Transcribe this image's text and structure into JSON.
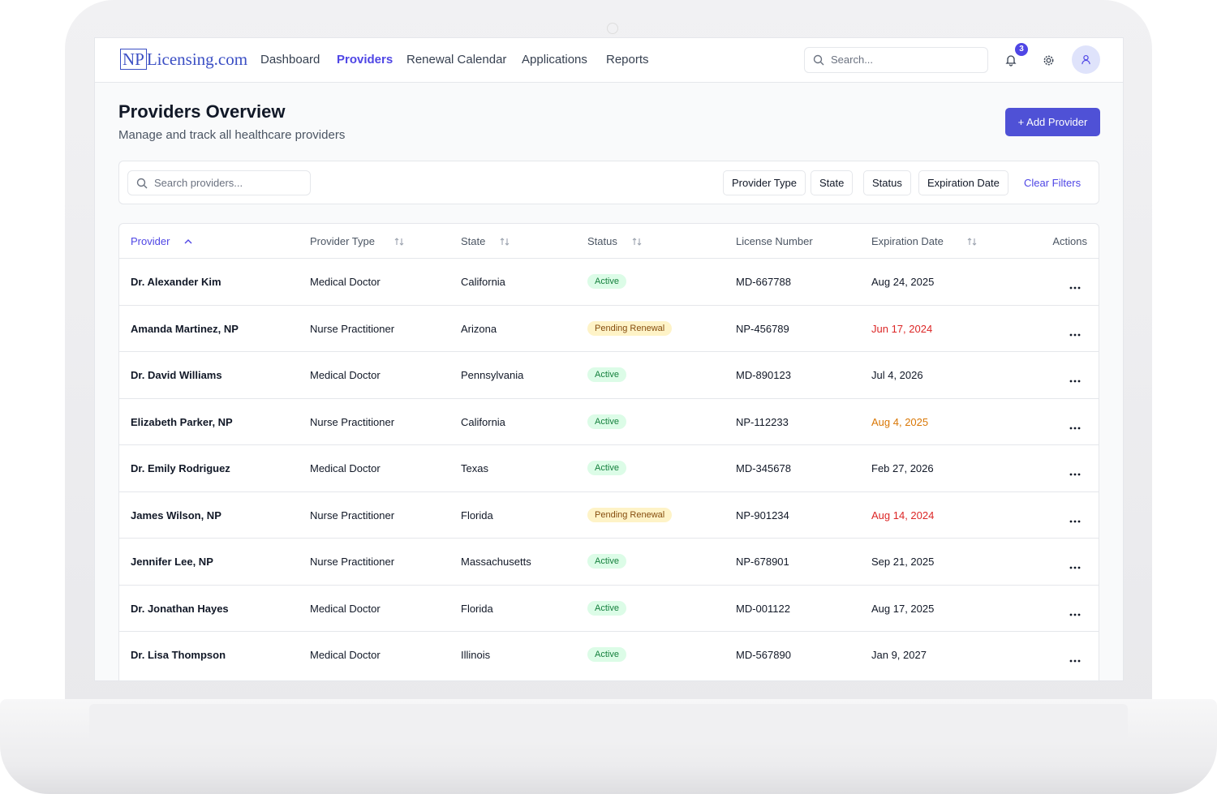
{
  "nav": {
    "logo": {
      "box": "NP",
      "rest": "Licensing.com"
    },
    "links": [
      "Dashboard",
      "Providers",
      "Renewal Calendar",
      "Applications",
      "Reports"
    ],
    "active_link": 1,
    "search_placeholder": "Search...",
    "notification_count": "3"
  },
  "header": {
    "title": "Providers Overview",
    "subtitle": "Manage and track all healthcare providers",
    "button": "+ Add Provider"
  },
  "filters": {
    "search_placeholder": "Search providers...",
    "buttons": [
      "Provider Type",
      "State",
      "Status",
      "Expiration Date"
    ],
    "clear": "Clear Filters"
  },
  "table": {
    "columns": [
      "Provider",
      "Provider Type",
      "State",
      "Status",
      "License Number",
      "Expiration Date",
      "Actions"
    ],
    "rows": [
      {
        "provider": "Dr. Alexander Kim",
        "type": "Medical Doctor",
        "state": "California",
        "status": "Active",
        "status_color": "#15803d",
        "status_bg": "#dcfce7",
        "license": "MD-667788",
        "expiration": "Aug 24, 2025",
        "expiration_color": "#111827"
      },
      {
        "provider": "Amanda Martinez, NP",
        "type": "Nurse Practitioner",
        "state": "Arizona",
        "status": "Pending Renewal",
        "status_color": "#854d0e",
        "status_bg": "#fef3c7",
        "license": "NP-456789",
        "expiration": "Jun 17, 2024",
        "expiration_color": "#dc2626"
      },
      {
        "provider": "Dr. David Williams",
        "type": "Medical Doctor",
        "state": "Pennsylvania",
        "status": "Active",
        "status_color": "#15803d",
        "status_bg": "#dcfce7",
        "license": "MD-890123",
        "expiration": "Jul 4, 2026",
        "expiration_color": "#111827"
      },
      {
        "provider": "Elizabeth Parker, NP",
        "type": "Nurse Practitioner",
        "state": "California",
        "status": "Active",
        "status_color": "#15803d",
        "status_bg": "#dcfce7",
        "license": "NP-112233",
        "expiration": "Aug 4, 2025",
        "expiration_color": "#d97706"
      },
      {
        "provider": "Dr. Emily Rodriguez",
        "type": "Medical Doctor",
        "state": "Texas",
        "status": "Active",
        "status_color": "#15803d",
        "status_bg": "#dcfce7",
        "license": "MD-345678",
        "expiration": "Feb 27, 2026",
        "expiration_color": "#111827"
      },
      {
        "provider": "James Wilson, NP",
        "type": "Nurse Practitioner",
        "state": "Florida",
        "status": "Pending Renewal",
        "status_color": "#854d0e",
        "status_bg": "#fef3c7",
        "license": "NP-901234",
        "expiration": "Aug 14, 2024",
        "expiration_color": "#dc2626"
      },
      {
        "provider": "Jennifer Lee, NP",
        "type": "Nurse Practitioner",
        "state": "Massachusetts",
        "status": "Active",
        "status_color": "#15803d",
        "status_bg": "#dcfce7",
        "license": "NP-678901",
        "expiration": "Sep 21, 2025",
        "expiration_color": "#111827"
      },
      {
        "provider": "Dr. Jonathan Hayes",
        "type": "Medical Doctor",
        "state": "Florida",
        "status": "Active",
        "status_color": "#15803d",
        "status_bg": "#dcfce7",
        "license": "MD-001122",
        "expiration": "Aug 17, 2025",
        "expiration_color": "#111827"
      },
      {
        "provider": "Dr. Lisa Thompson",
        "type": "Medical Doctor",
        "state": "Illinois",
        "status": "Active",
        "status_color": "#15803d",
        "status_bg": "#dcfce7",
        "license": "MD-567890",
        "expiration": "Jan 9, 2027",
        "expiration_color": "#111827"
      }
    ]
  }
}
